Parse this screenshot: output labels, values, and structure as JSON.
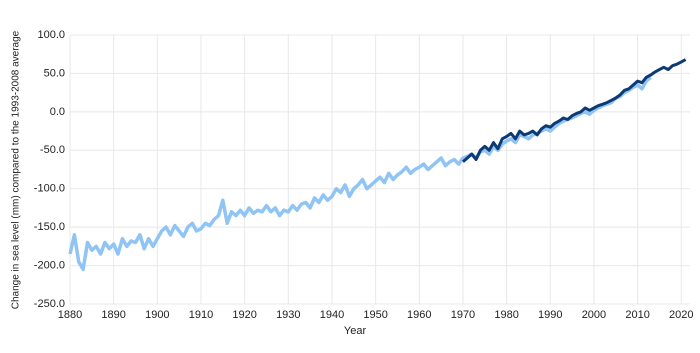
{
  "chart_data": {
    "type": "line",
    "y_label": "Change in sea level (mm) compared to the 1993-2008 average",
    "x_label": "Year",
    "xlim": [
      1880,
      2022
    ],
    "xticks": [
      1880,
      1890,
      1900,
      1910,
      1920,
      1930,
      1940,
      1950,
      1960,
      1970,
      1980,
      1990,
      2000,
      2010,
      2020
    ],
    "ylim": [
      -250,
      100
    ],
    "yticks": [
      {
        "value": -250,
        "label": "-250.0"
      },
      {
        "value": -200,
        "label": "-200.0"
      },
      {
        "value": -150,
        "label": "-150.0"
      },
      {
        "value": -100,
        "label": "-100.0"
      },
      {
        "value": -50,
        "label": "-50.0"
      },
      {
        "value": 0,
        "label": "0.0"
      },
      {
        "value": 50,
        "label": "50.0"
      },
      {
        "value": 100,
        "label": "100.0"
      }
    ],
    "grid": true,
    "series": [
      {
        "color": "#8fc4f5",
        "x": [
          1880,
          1881,
          1882,
          1883,
          1884,
          1885,
          1886,
          1887,
          1888,
          1889,
          1890,
          1891,
          1892,
          1893,
          1894,
          1895,
          1896,
          1897,
          1898,
          1899,
          1900,
          1901,
          1902,
          1903,
          1904,
          1905,
          1906,
          1907,
          1908,
          1909,
          1910,
          1911,
          1912,
          1913,
          1914,
          1915,
          1916,
          1917,
          1918,
          1919,
          1920,
          1921,
          1922,
          1923,
          1924,
          1925,
          1926,
          1927,
          1928,
          1929,
          1930,
          1931,
          1932,
          1933,
          1934,
          1935,
          1936,
          1937,
          1938,
          1939,
          1940,
          1941,
          1942,
          1943,
          1944,
          1945,
          1946,
          1947,
          1948,
          1949,
          1950,
          1951,
          1952,
          1953,
          1954,
          1955,
          1956,
          1957,
          1958,
          1959,
          1960,
          1961,
          1962,
          1963,
          1964,
          1965,
          1966,
          1967,
          1968,
          1969,
          1970,
          1971,
          1972,
          1973,
          1974,
          1975,
          1976,
          1977,
          1978,
          1979,
          1980,
          1981,
          1982,
          1983,
          1984,
          1985,
          1986,
          1987,
          1988,
          1989,
          1990,
          1991,
          1992,
          1993,
          1994,
          1995,
          1996,
          1997,
          1998,
          1999,
          2000,
          2001,
          2002,
          2003,
          2004,
          2005,
          2006,
          2007,
          2008,
          2009,
          2010,
          2011,
          2012,
          2013
        ],
        "values": [
          -185,
          -160,
          -195,
          -205,
          -170,
          -180,
          -175,
          -185,
          -170,
          -178,
          -172,
          -185,
          -165,
          -175,
          -168,
          -170,
          -160,
          -178,
          -165,
          -175,
          -165,
          -155,
          -150,
          -160,
          -148,
          -155,
          -162,
          -150,
          -145,
          -155,
          -152,
          -145,
          -148,
          -140,
          -135,
          -115,
          -145,
          -130,
          -135,
          -128,
          -135,
          -125,
          -132,
          -128,
          -130,
          -122,
          -130,
          -125,
          -135,
          -128,
          -130,
          -122,
          -128,
          -120,
          -118,
          -125,
          -112,
          -118,
          -108,
          -115,
          -110,
          -100,
          -105,
          -95,
          -110,
          -100,
          -95,
          -88,
          -100,
          -95,
          -90,
          -85,
          -92,
          -80,
          -88,
          -82,
          -78,
          -72,
          -80,
          -75,
          -72,
          -68,
          -75,
          -70,
          -65,
          -60,
          -70,
          -65,
          -62,
          -68,
          -60,
          -58,
          -55,
          -60,
          -52,
          -50,
          -55,
          -45,
          -50,
          -42,
          -38,
          -35,
          -40,
          -30,
          -32,
          -35,
          -30,
          -28,
          -25,
          -22,
          -25,
          -20,
          -15,
          -12,
          -10,
          -8,
          -5,
          -2,
          0,
          -3,
          2,
          5,
          8,
          10,
          12,
          18,
          20,
          25,
          28,
          32,
          35,
          30,
          40,
          45
        ]
      },
      {
        "color": "#0d3a72",
        "x": [
          1970,
          1971,
          1972,
          1973,
          1974,
          1975,
          1976,
          1977,
          1978,
          1979,
          1980,
          1981,
          1982,
          1983,
          1984,
          1985,
          1986,
          1987,
          1988,
          1989,
          1990,
          1991,
          1992,
          1993,
          1994,
          1995,
          1996,
          1997,
          1998,
          1999,
          2000,
          2001,
          2002,
          2003,
          2004,
          2005,
          2006,
          2007,
          2008,
          2009,
          2010,
          2011,
          2012,
          2013,
          2014,
          2015,
          2016,
          2017,
          2018,
          2019,
          2020,
          2021
        ],
        "values": [
          -65,
          -60,
          -55,
          -62,
          -50,
          -45,
          -50,
          -40,
          -48,
          -35,
          -32,
          -28,
          -35,
          -25,
          -30,
          -28,
          -25,
          -30,
          -22,
          -18,
          -20,
          -15,
          -12,
          -8,
          -10,
          -5,
          -2,
          0,
          5,
          2,
          5,
          8,
          10,
          12,
          15,
          18,
          22,
          28,
          30,
          35,
          40,
          38,
          45,
          48,
          52,
          55,
          58,
          55,
          60,
          62,
          65,
          68
        ]
      }
    ]
  }
}
